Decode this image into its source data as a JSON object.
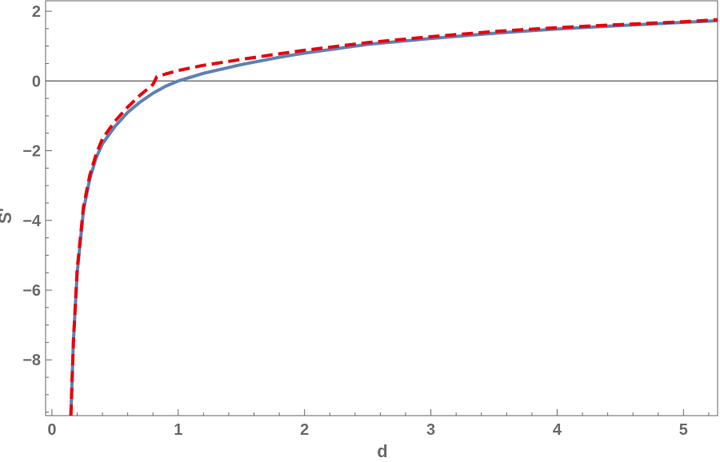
{
  "chart_data": {
    "type": "line",
    "title": "",
    "xlabel": "d",
    "ylabel": "S'",
    "xlim": [
      -0.05,
      5.27
    ],
    "ylim": [
      -9.6,
      2.3
    ],
    "x_ticks": [
      {
        "value": 0,
        "label": "0"
      },
      {
        "value": 1,
        "label": "1"
      },
      {
        "value": 2,
        "label": "2"
      },
      {
        "value": 3,
        "label": "3"
      },
      {
        "value": 4,
        "label": "4"
      },
      {
        "value": 5,
        "label": "5"
      }
    ],
    "y_ticks": [
      {
        "value": 2,
        "label": "2"
      },
      {
        "value": 0,
        "label": "0"
      },
      {
        "value": -2,
        "label": "−2"
      },
      {
        "value": -4,
        "label": "−4"
      },
      {
        "value": -6,
        "label": "−6"
      },
      {
        "value": -8,
        "label": "−8"
      }
    ],
    "zero_line": true,
    "grid": false,
    "series": [
      {
        "style": "solid",
        "color": "#5e81b5",
        "points": [
          [
            0.15,
            -9.6
          ],
          [
            0.17,
            -7.5
          ],
          [
            0.2,
            -5.5
          ],
          [
            0.25,
            -3.7
          ],
          [
            0.3,
            -2.8
          ],
          [
            0.35,
            -2.2
          ],
          [
            0.4,
            -1.8
          ],
          [
            0.5,
            -1.3
          ],
          [
            0.6,
            -0.9
          ],
          [
            0.7,
            -0.6
          ],
          [
            0.8,
            -0.35
          ],
          [
            0.9,
            -0.15
          ],
          [
            1.0,
            0.0
          ],
          [
            1.2,
            0.22
          ],
          [
            1.5,
            0.47
          ],
          [
            1.8,
            0.68
          ],
          [
            2.0,
            0.8
          ],
          [
            2.5,
            1.05
          ],
          [
            3.0,
            1.22
          ],
          [
            3.5,
            1.37
          ],
          [
            4.0,
            1.49
          ],
          [
            4.5,
            1.59
          ],
          [
            5.0,
            1.68
          ],
          [
            5.27,
            1.73
          ]
        ]
      },
      {
        "style": "dashed",
        "color": "#e8000b",
        "points": [
          [
            0.15,
            -9.6
          ],
          [
            0.17,
            -7.5
          ],
          [
            0.2,
            -5.4
          ],
          [
            0.25,
            -3.6
          ],
          [
            0.3,
            -2.7
          ],
          [
            0.35,
            -2.1
          ],
          [
            0.4,
            -1.65
          ],
          [
            0.5,
            -1.15
          ],
          [
            0.6,
            -0.75
          ],
          [
            0.7,
            -0.4
          ],
          [
            0.8,
            -0.1
          ],
          [
            0.83,
            0.12
          ],
          [
            0.9,
            0.2
          ],
          [
            1.0,
            0.3
          ],
          [
            1.2,
            0.45
          ],
          [
            1.5,
            0.62
          ],
          [
            1.8,
            0.78
          ],
          [
            2.0,
            0.88
          ],
          [
            2.5,
            1.1
          ],
          [
            3.0,
            1.27
          ],
          [
            3.5,
            1.42
          ],
          [
            4.0,
            1.53
          ],
          [
            4.5,
            1.62
          ],
          [
            5.0,
            1.7
          ],
          [
            5.27,
            1.76
          ]
        ]
      }
    ]
  }
}
